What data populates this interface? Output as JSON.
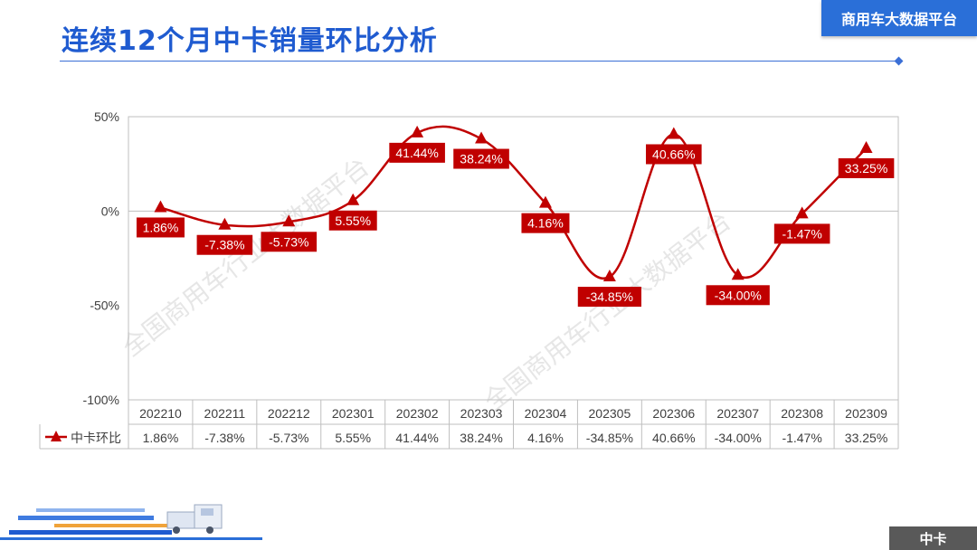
{
  "header": {
    "title": "连续12个月中卡销量环比分析",
    "badge": "商用车大数据平台"
  },
  "footer": {
    "tag": "中卡"
  },
  "watermark": "全国商用车行业大数据平台",
  "colors": {
    "series": "#c00000",
    "accent": "#2a6fd8"
  },
  "chart_data": {
    "type": "line",
    "title": "",
    "xlabel": "",
    "ylabel": "",
    "ylim": [
      -100,
      50
    ],
    "y_ticks": [
      50,
      0,
      -50,
      -100
    ],
    "y_tick_labels": [
      "50%",
      "0%",
      "-50%",
      "-100%"
    ],
    "grid": "horizontal zero line",
    "categories": [
      "202210",
      "202211",
      "202212",
      "202301",
      "202302",
      "202303",
      "202304",
      "202305",
      "202306",
      "202307",
      "202308",
      "202309"
    ],
    "series": [
      {
        "name": "中卡环比",
        "marker": "triangle",
        "values": [
          1.86,
          -7.38,
          -5.73,
          5.55,
          41.44,
          38.24,
          4.16,
          -34.85,
          40.66,
          -34.0,
          -1.47,
          33.25
        ],
        "labels": [
          "1.86%",
          "-7.38%",
          "-5.73%",
          "5.55%",
          "41.44%",
          "38.24%",
          "4.16%",
          "-34.85%",
          "40.66%",
          "-34.00%",
          "-1.47%",
          "33.25%"
        ]
      }
    ],
    "data_table": true
  }
}
